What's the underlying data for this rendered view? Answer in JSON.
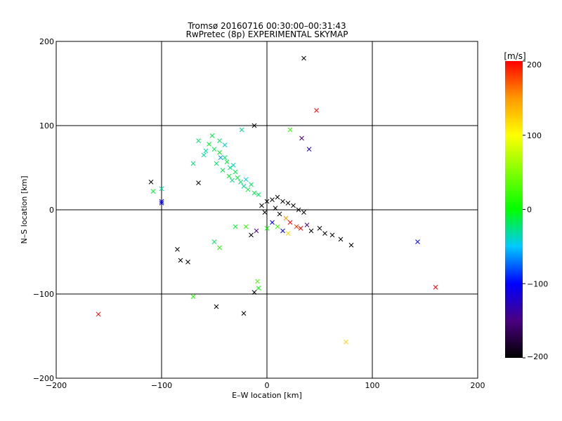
{
  "chart_data": {
    "type": "scatter",
    "title": "Tromsø 20160716 00:30:00–00:31:43",
    "subtitle": "RwPretec (8p) EXPERIMENTAL SKYMAP",
    "xlabel": "E–W location [km]",
    "ylabel": "N–S location [km]",
    "xlim": [
      -200,
      200
    ],
    "ylim": [
      -200,
      200
    ],
    "x_ticks": [
      "−200",
      "−100",
      "0",
      "100",
      "200"
    ],
    "y_ticks": [
      "−200",
      "−100",
      "0",
      "100",
      "200"
    ],
    "grid": true,
    "colorbar": {
      "label": "[m/s]",
      "range": [
        -200,
        200
      ],
      "ticks": [
        "200",
        "100",
        "0",
        "−100",
        "−200"
      ]
    },
    "colors": {
      "v_neg200": "#000000",
      "v_neg150": "#4a0080",
      "v_neg100": "#0000ff",
      "v_neg50": "#00c8ff",
      "v_0": "#00ff00",
      "v_pos100": "#ffff00",
      "v_pos150": "#ff9900",
      "v_pos200": "#ff0000"
    },
    "points": [
      {
        "x": -55,
        "y": 78,
        "v": -10,
        "m": "x"
      },
      {
        "x": -50,
        "y": 72,
        "v": -15,
        "m": "x"
      },
      {
        "x": -45,
        "y": 68,
        "v": -5,
        "m": "x"
      },
      {
        "x": -40,
        "y": 62,
        "v": -20,
        "m": "x"
      },
      {
        "x": -38,
        "y": 57,
        "v": -10,
        "m": "x"
      },
      {
        "x": -35,
        "y": 50,
        "v": -25,
        "m": "x"
      },
      {
        "x": -30,
        "y": 45,
        "v": -15,
        "m": "x"
      },
      {
        "x": -28,
        "y": 38,
        "v": -10,
        "m": "x"
      },
      {
        "x": -25,
        "y": 33,
        "v": -20,
        "m": "x"
      },
      {
        "x": -22,
        "y": 28,
        "v": -30,
        "m": "x"
      },
      {
        "x": -60,
        "y": 65,
        "v": -30,
        "m": "x"
      },
      {
        "x": -48,
        "y": 55,
        "v": -20,
        "m": "x"
      },
      {
        "x": -42,
        "y": 47,
        "v": -15,
        "m": "x"
      },
      {
        "x": -36,
        "y": 40,
        "v": -10,
        "m": "x"
      },
      {
        "x": -33,
        "y": 35,
        "v": -25,
        "m": "x"
      },
      {
        "x": -65,
        "y": 82,
        "v": -20,
        "m": "x"
      },
      {
        "x": -70,
        "y": 55,
        "v": -25,
        "m": "x"
      },
      {
        "x": -52,
        "y": 88,
        "v": -15,
        "m": "x"
      },
      {
        "x": -24,
        "y": 95,
        "v": -30,
        "m": "x"
      },
      {
        "x": -100,
        "y": 25,
        "v": -30,
        "m": "x"
      },
      {
        "x": -108,
        "y": 22,
        "v": -10,
        "m": "x"
      },
      {
        "x": -12,
        "y": 20,
        "v": -15,
        "m": "x"
      },
      {
        "x": -18,
        "y": 24,
        "v": -10,
        "m": "x"
      },
      {
        "x": -8,
        "y": 18,
        "v": -20,
        "m": "x"
      },
      {
        "x": -100,
        "y": 10,
        "v": -100,
        "m": "x"
      },
      {
        "x": -110,
        "y": 33,
        "v": -200,
        "m": "x"
      },
      {
        "x": -65,
        "y": 32,
        "v": -200,
        "m": "x"
      },
      {
        "x": -12,
        "y": 100,
        "v": -200,
        "m": "x"
      },
      {
        "x": 35,
        "y": 180,
        "v": -200,
        "m": "x"
      },
      {
        "x": 47,
        "y": 118,
        "v": 200,
        "m": "x"
      },
      {
        "x": 22,
        "y": 95,
        "v": 20,
        "m": "x"
      },
      {
        "x": 33,
        "y": 85,
        "v": -150,
        "m": "x"
      },
      {
        "x": 40,
        "y": 72,
        "v": -120,
        "m": "x"
      },
      {
        "x": -5,
        "y": 5,
        "v": -200,
        "m": "x"
      },
      {
        "x": 0,
        "y": 10,
        "v": -200,
        "m": "x"
      },
      {
        "x": 5,
        "y": 12,
        "v": -200,
        "m": "x"
      },
      {
        "x": 10,
        "y": 15,
        "v": -200,
        "m": "x"
      },
      {
        "x": 15,
        "y": 10,
        "v": -200,
        "m": "x"
      },
      {
        "x": 20,
        "y": 8,
        "v": -200,
        "m": "x"
      },
      {
        "x": 25,
        "y": 5,
        "v": -200,
        "m": "x"
      },
      {
        "x": 30,
        "y": 0,
        "v": -200,
        "m": "x"
      },
      {
        "x": 35,
        "y": -3,
        "v": -200,
        "m": "x"
      },
      {
        "x": 8,
        "y": 2,
        "v": -200,
        "m": "x"
      },
      {
        "x": -2,
        "y": -3,
        "v": -200,
        "m": "x"
      },
      {
        "x": 12,
        "y": -5,
        "v": -200,
        "m": "x"
      },
      {
        "x": 18,
        "y": -10,
        "v": 150,
        "m": "x"
      },
      {
        "x": 22,
        "y": -15,
        "v": 200,
        "m": "x"
      },
      {
        "x": 28,
        "y": -20,
        "v": 180,
        "m": "x"
      },
      {
        "x": 32,
        "y": -22,
        "v": 200,
        "m": "x"
      },
      {
        "x": 38,
        "y": -18,
        "v": -150,
        "m": "x"
      },
      {
        "x": 10,
        "y": -20,
        "v": 20,
        "m": "x"
      },
      {
        "x": 15,
        "y": -25,
        "v": -100,
        "m": "x"
      },
      {
        "x": 20,
        "y": -28,
        "v": 120,
        "m": "x"
      },
      {
        "x": 5,
        "y": -15,
        "v": -100,
        "m": "x"
      },
      {
        "x": 0,
        "y": -22,
        "v": 0,
        "m": "x"
      },
      {
        "x": 42,
        "y": -25,
        "v": -200,
        "m": "x"
      },
      {
        "x": 50,
        "y": -22,
        "v": -200,
        "m": "x"
      },
      {
        "x": 55,
        "y": -28,
        "v": -200,
        "m": "x"
      },
      {
        "x": 62,
        "y": -30,
        "v": -200,
        "m": "x"
      },
      {
        "x": 70,
        "y": -35,
        "v": -200,
        "m": "x"
      },
      {
        "x": 80,
        "y": -42,
        "v": -200,
        "m": "x"
      },
      {
        "x": -10,
        "y": -25,
        "v": -150,
        "m": "x"
      },
      {
        "x": -15,
        "y": -30,
        "v": -200,
        "m": "x"
      },
      {
        "x": -20,
        "y": -20,
        "v": 20,
        "m": "x"
      },
      {
        "x": -30,
        "y": -20,
        "v": -10,
        "m": "x"
      },
      {
        "x": -45,
        "y": -45,
        "v": 10,
        "m": "x"
      },
      {
        "x": -50,
        "y": -38,
        "v": -20,
        "m": "x"
      },
      {
        "x": -85,
        "y": -47,
        "v": -200,
        "m": "x"
      },
      {
        "x": -82,
        "y": -60,
        "v": -200,
        "m": "x"
      },
      {
        "x": -75,
        "y": -62,
        "v": -200,
        "m": "x"
      },
      {
        "x": -9,
        "y": -85,
        "v": 30,
        "m": "x"
      },
      {
        "x": -8,
        "y": -93,
        "v": 0,
        "m": "x"
      },
      {
        "x": -12,
        "y": -98,
        "v": -200,
        "m": "x"
      },
      {
        "x": -70,
        "y": -103,
        "v": 10,
        "m": "x"
      },
      {
        "x": -48,
        "y": -115,
        "v": -200,
        "m": "x"
      },
      {
        "x": -22,
        "y": -123,
        "v": -200,
        "m": "x"
      },
      {
        "x": -160,
        "y": -124,
        "v": 200,
        "m": "x"
      },
      {
        "x": 75,
        "y": -157,
        "v": 120,
        "m": "x"
      },
      {
        "x": 143,
        "y": -38,
        "v": -100,
        "m": "x"
      },
      {
        "x": 160,
        "y": -92,
        "v": 200,
        "m": "x"
      },
      {
        "x": -100,
        "y": 8,
        "v": -100,
        "m": "x"
      },
      {
        "x": -45,
        "y": 82,
        "v": -20,
        "m": "x"
      },
      {
        "x": -40,
        "y": 77,
        "v": -40,
        "m": "x"
      },
      {
        "x": -58,
        "y": 70,
        "v": -30,
        "m": "x"
      },
      {
        "x": -20,
        "y": 36,
        "v": -40,
        "m": "x"
      },
      {
        "x": -15,
        "y": 30,
        "v": -20,
        "m": "x"
      },
      {
        "x": -44,
        "y": 62,
        "v": -60,
        "m": "x"
      },
      {
        "x": -32,
        "y": 53,
        "v": -40,
        "m": "x"
      }
    ]
  }
}
